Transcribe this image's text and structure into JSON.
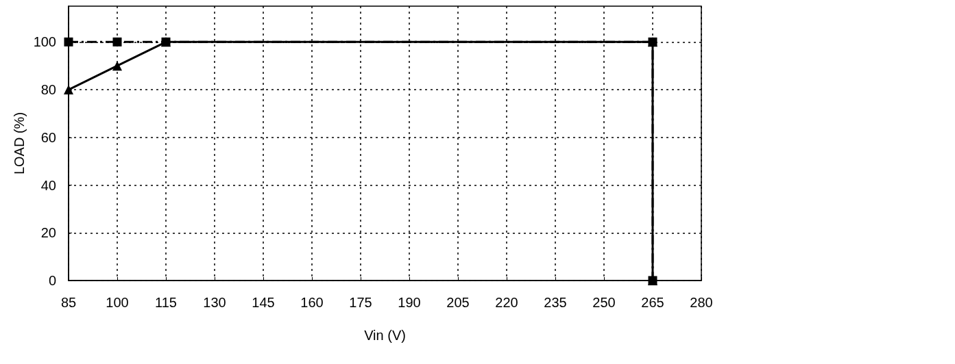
{
  "chart_data": {
    "type": "line",
    "xlabel": "Vin (V)",
    "ylabel": "LOAD (%)",
    "xlim": [
      85,
      280
    ],
    "xticks": [
      85,
      100,
      115,
      130,
      145,
      160,
      175,
      190,
      205,
      220,
      235,
      250,
      265,
      280
    ],
    "ylim": [
      0,
      115
    ],
    "yticks": [
      0,
      20,
      40,
      60,
      80,
      100
    ],
    "grid": true,
    "series": [
      {
        "color": "#000000",
        "marker": "square",
        "line_style": "dashed",
        "x": [
          85,
          100,
          115,
          265,
          265
        ],
        "values": [
          100,
          100,
          100,
          100,
          0
        ]
      },
      {
        "color": "#000000",
        "marker": "triangle",
        "line_style": "solid",
        "x": [
          85,
          100,
          115,
          265,
          265
        ],
        "values": [
          80,
          90,
          100,
          100,
          0
        ]
      }
    ]
  }
}
